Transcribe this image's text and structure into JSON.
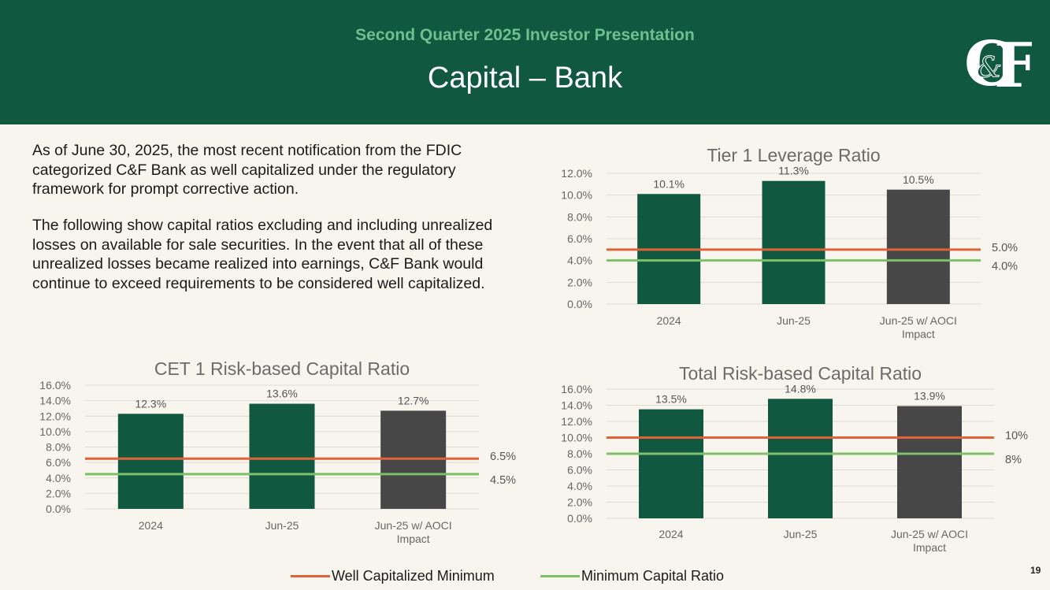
{
  "header": {
    "subtitle": "Second Quarter 2025 Investor Presentation",
    "title": "Capital – Bank",
    "logo_text": "C&F"
  },
  "body_text": {
    "paragraph1": "As of June 30, 2025, the most recent notification from the FDIC categorized C&F Bank as well capitalized under the regulatory framework for prompt corrective action.",
    "paragraph2": "The following show capital ratios excluding and including unrealized losses on available for sale securities. In the event that all of these unrealized losses became realized into earnings, C&F Bank would continue to exceed requirements to be considered well capitalized."
  },
  "colors": {
    "header_bg": "#115841",
    "bar_green": "#115841",
    "bar_gray": "#474747",
    "well_capitalized_line": "#e0623a",
    "minimum_line": "#7dc06a"
  },
  "legend": {
    "well_capitalized": "Well Capitalized Minimum",
    "minimum": "Minimum Capital Ratio"
  },
  "page_number": "19",
  "chart_data": [
    {
      "id": "tier1",
      "type": "bar",
      "title": "Tier 1 Leverage Ratio",
      "categories": [
        "2024",
        "Jun-25",
        "Jun-25 w/ AOCI Impact"
      ],
      "values": [
        10.1,
        11.3,
        10.5
      ],
      "value_labels": [
        "10.1%",
        "11.3%",
        "10.5%"
      ],
      "bar_colors": [
        "#115841",
        "#115841",
        "#474747"
      ],
      "ylim": [
        0,
        12
      ],
      "yticks": [
        0,
        2,
        4,
        6,
        8,
        10,
        12
      ],
      "ytick_labels": [
        "0.0%",
        "2.0%",
        "4.0%",
        "6.0%",
        "8.0%",
        "10.0%",
        "12.0%"
      ],
      "reference_lines": [
        {
          "name": "Well Capitalized Minimum",
          "value": 5,
          "label": "5.0%",
          "color": "#e0623a"
        },
        {
          "name": "Minimum Capital Ratio",
          "value": 4,
          "label": "4.0%",
          "color": "#7dc06a"
        }
      ]
    },
    {
      "id": "cet1",
      "type": "bar",
      "title": "CET 1 Risk-based Capital Ratio",
      "categories": [
        "2024",
        "Jun-25",
        "Jun-25 w/ AOCI Impact"
      ],
      "values": [
        12.3,
        13.6,
        12.7
      ],
      "value_labels": [
        "12.3%",
        "13.6%",
        "12.7%"
      ],
      "bar_colors": [
        "#115841",
        "#115841",
        "#474747"
      ],
      "ylim": [
        0,
        16
      ],
      "yticks": [
        0,
        2,
        4,
        6,
        8,
        10,
        12,
        14,
        16
      ],
      "ytick_labels": [
        "0.0%",
        "2.0%",
        "4.0%",
        "6.0%",
        "8.0%",
        "10.0%",
        "12.0%",
        "14.0%",
        "16.0%"
      ],
      "reference_lines": [
        {
          "name": "Well Capitalized Minimum",
          "value": 6.5,
          "label": "6.5%",
          "color": "#e0623a"
        },
        {
          "name": "Minimum Capital Ratio",
          "value": 4.5,
          "label": "4.5%",
          "color": "#7dc06a"
        }
      ]
    },
    {
      "id": "total",
      "type": "bar",
      "title": "Total Risk-based Capital Ratio",
      "categories": [
        "2024",
        "Jun-25",
        "Jun-25 w/ AOCI Impact"
      ],
      "values": [
        13.5,
        14.8,
        13.9
      ],
      "value_labels": [
        "13.5%",
        "14.8%",
        "13.9%"
      ],
      "bar_colors": [
        "#115841",
        "#115841",
        "#474747"
      ],
      "ylim": [
        0,
        16
      ],
      "yticks": [
        0,
        2,
        4,
        6,
        8,
        10,
        12,
        14,
        16
      ],
      "ytick_labels": [
        "0.0%",
        "2.0%",
        "4.0%",
        "6.0%",
        "8.0%",
        "10.0%",
        "12.0%",
        "14.0%",
        "16.0%"
      ],
      "reference_lines": [
        {
          "name": "Well Capitalized Minimum",
          "value": 10,
          "label": "10%",
          "color": "#e0623a"
        },
        {
          "name": "Minimum Capital Ratio",
          "value": 8,
          "label": "8%",
          "color": "#7dc06a"
        }
      ]
    }
  ]
}
